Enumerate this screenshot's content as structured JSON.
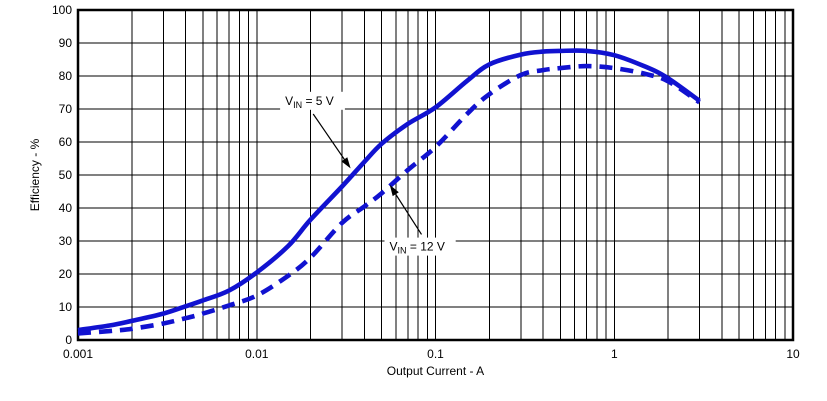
{
  "chart_data": {
    "type": "line",
    "title": "",
    "xlabel": "Output Current - A",
    "ylabel": "Efficiency - %",
    "x_scale": "log",
    "xlim": [
      0.001,
      10
    ],
    "ylim": [
      0,
      100
    ],
    "grid": "on, full log minor grid vertical, 10% steps horizontal",
    "legend_position": "inline-annotations",
    "frame_color": "#000000",
    "grid_color": "#000000",
    "curve_color": "#1112d0",
    "x_ticks": [
      {
        "value": 0.001,
        "label": "0.001"
      },
      {
        "value": 0.01,
        "label": "0.01"
      },
      {
        "value": 0.1,
        "label": "0.1"
      },
      {
        "value": 1,
        "label": "1"
      },
      {
        "value": 10,
        "label": "10"
      }
    ],
    "y_ticks": [
      {
        "value": 0,
        "label": "0"
      },
      {
        "value": 10,
        "label": "10"
      },
      {
        "value": 20,
        "label": "20"
      },
      {
        "value": 30,
        "label": "30"
      },
      {
        "value": 40,
        "label": "40"
      },
      {
        "value": 50,
        "label": "50"
      },
      {
        "value": 60,
        "label": "60"
      },
      {
        "value": 70,
        "label": "70"
      },
      {
        "value": 80,
        "label": "80"
      },
      {
        "value": 90,
        "label": "90"
      },
      {
        "value": 100,
        "label": "100"
      }
    ],
    "series": [
      {
        "name": "VIN = 5 V",
        "style": "solid",
        "color": "#1112d0",
        "points": [
          [
            0.001,
            3
          ],
          [
            0.0015,
            4.4
          ],
          [
            0.002,
            5.8
          ],
          [
            0.003,
            8
          ],
          [
            0.004,
            10.2
          ],
          [
            0.005,
            12
          ],
          [
            0.007,
            15
          ],
          [
            0.01,
            20.5
          ],
          [
            0.015,
            28.5
          ],
          [
            0.02,
            36.5
          ],
          [
            0.03,
            46.5
          ],
          [
            0.04,
            54
          ],
          [
            0.05,
            59.5
          ],
          [
            0.07,
            65.5
          ],
          [
            0.1,
            70.5
          ],
          [
            0.15,
            78.5
          ],
          [
            0.2,
            83.5
          ],
          [
            0.3,
            86.5
          ],
          [
            0.4,
            87.4
          ],
          [
            0.5,
            87.6
          ],
          [
            0.7,
            87.6
          ],
          [
            1,
            86.3
          ],
          [
            1.5,
            82.8
          ],
          [
            2,
            79.3
          ],
          [
            3,
            72.5
          ]
        ]
      },
      {
        "name": "VIN = 12 V",
        "style": "dashed",
        "color": "#1112d0",
        "points": [
          [
            0.001,
            2
          ],
          [
            0.0015,
            2.7
          ],
          [
            0.002,
            3.4
          ],
          [
            0.003,
            5
          ],
          [
            0.004,
            6.6
          ],
          [
            0.005,
            8
          ],
          [
            0.007,
            10.5
          ],
          [
            0.01,
            13.5
          ],
          [
            0.015,
            19.5
          ],
          [
            0.02,
            25
          ],
          [
            0.03,
            35.5
          ],
          [
            0.04,
            40.5
          ],
          [
            0.05,
            44.5
          ],
          [
            0.07,
            51.5
          ],
          [
            0.1,
            58.5
          ],
          [
            0.15,
            68.5
          ],
          [
            0.2,
            74.5
          ],
          [
            0.3,
            80.3
          ],
          [
            0.4,
            81.8
          ],
          [
            0.5,
            82.4
          ],
          [
            0.7,
            83
          ],
          [
            1,
            82.4
          ],
          [
            1.5,
            80.6
          ],
          [
            2,
            78.4
          ],
          [
            3,
            72
          ]
        ]
      }
    ],
    "annotations": [
      {
        "pre": "V",
        "sub": "IN",
        "post": " = 5 V",
        "series": "VIN = 5 V",
        "label_x": 0.0205,
        "label_y": 72.5,
        "arrow_from_x": 0.0207,
        "arrow_from_y": 68.5,
        "arrow_tip_x": 0.0335,
        "arrow_tip_y": 52
      },
      {
        "pre": "V",
        "sub": "IN",
        "post": " = 12 V",
        "series": "VIN = 12 V",
        "label_x": 0.082,
        "label_y": 28.3,
        "arrow_from_x": 0.0835,
        "arrow_from_y": 32,
        "arrow_tip_x": 0.0555,
        "arrow_tip_y": 47
      }
    ]
  }
}
